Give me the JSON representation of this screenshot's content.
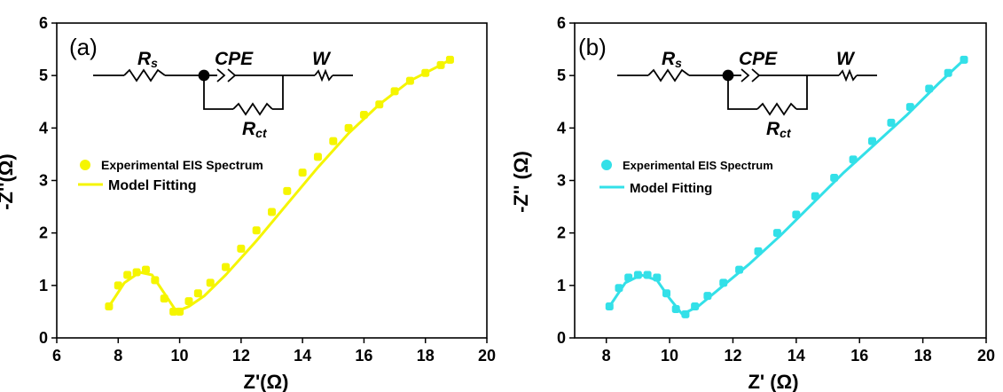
{
  "colors": {
    "panel_a_series": "#f5f500",
    "panel_b_series": "#33e0e8"
  },
  "chart_data": [
    {
      "type": "scatter",
      "panel_label": "(a)",
      "xlabel": "Z'(Ω)",
      "ylabel": "-Z''(Ω)",
      "xlim": [
        6,
        20
      ],
      "ylim": [
        0,
        6
      ],
      "x_ticks": [
        "6",
        "8",
        "10",
        "12",
        "14",
        "16",
        "18",
        "20"
      ],
      "y_ticks": [
        "0",
        "1",
        "2",
        "3",
        "4",
        "5",
        "6"
      ],
      "circuit": {
        "rs": "R",
        "rs_sub": "s",
        "cpe": "CPE",
        "w": "W",
        "rct": "R",
        "rct_sub": "ct"
      },
      "legend": [
        "Experimental EIS Spectrum",
        "Model Fitting"
      ],
      "series": [
        {
          "name": "Experimental EIS Spectrum",
          "x": [
            7.7,
            8.0,
            8.3,
            8.6,
            8.9,
            9.2,
            9.5,
            9.8,
            10.0,
            10.3,
            10.6,
            11.0,
            11.5,
            12.0,
            12.5,
            13.0,
            13.5,
            14.0,
            14.5,
            15.0,
            15.5,
            16.0,
            16.5,
            17.0,
            17.5,
            18.0,
            18.5,
            18.8
          ],
          "y": [
            0.6,
            1.0,
            1.2,
            1.25,
            1.3,
            1.1,
            0.75,
            0.5,
            0.5,
            0.7,
            0.85,
            1.05,
            1.35,
            1.7,
            2.05,
            2.4,
            2.8,
            3.15,
            3.45,
            3.75,
            4.0,
            4.25,
            4.45,
            4.7,
            4.9,
            5.05,
            5.2,
            5.3
          ]
        },
        {
          "name": "Model Fitting",
          "x": [
            7.7,
            8.2,
            8.7,
            9.1,
            9.5,
            9.9,
            10.3,
            10.8,
            11.5,
            12.5,
            13.5,
            14.5,
            15.5,
            16.5,
            17.5,
            18.5,
            18.8
          ],
          "y": [
            0.6,
            1.05,
            1.25,
            1.2,
            0.85,
            0.5,
            0.6,
            0.8,
            1.2,
            1.85,
            2.55,
            3.25,
            3.9,
            4.45,
            4.9,
            5.2,
            5.3
          ]
        }
      ]
    },
    {
      "type": "scatter",
      "panel_label": "(b)",
      "xlabel": "Z' (Ω)",
      "ylabel": "-Z'' (Ω)",
      "xlim": [
        7,
        20
      ],
      "ylim": [
        0,
        6
      ],
      "x_ticks": [
        "8",
        "10",
        "12",
        "14",
        "16",
        "18",
        "20"
      ],
      "y_ticks": [
        "0",
        "1",
        "2",
        "3",
        "4",
        "5",
        "6"
      ],
      "circuit": {
        "rs": "R",
        "rs_sub": "s",
        "cpe": "CPE",
        "w": "W",
        "rct": "R",
        "rct_sub": "ct"
      },
      "legend": [
        "Experimental EIS Spectrum",
        "Model Fitting"
      ],
      "series": [
        {
          "name": "Experimental EIS Spectrum",
          "x": [
            8.1,
            8.4,
            8.7,
            9.0,
            9.3,
            9.6,
            9.9,
            10.2,
            10.5,
            10.8,
            11.2,
            11.7,
            12.2,
            12.8,
            13.4,
            14.0,
            14.6,
            15.2,
            15.8,
            16.4,
            17.0,
            17.6,
            18.2,
            18.8,
            19.3
          ],
          "y": [
            0.6,
            0.95,
            1.15,
            1.2,
            1.2,
            1.15,
            0.85,
            0.55,
            0.45,
            0.6,
            0.8,
            1.05,
            1.3,
            1.65,
            2.0,
            2.35,
            2.7,
            3.05,
            3.4,
            3.75,
            4.1,
            4.4,
            4.75,
            5.05,
            5.3
          ]
        },
        {
          "name": "Model Fitting",
          "x": [
            8.1,
            8.6,
            9.1,
            9.6,
            10.0,
            10.4,
            10.9,
            11.6,
            12.5,
            13.5,
            14.5,
            15.5,
            16.5,
            17.5,
            18.5,
            19.3
          ],
          "y": [
            0.6,
            1.05,
            1.2,
            1.1,
            0.75,
            0.45,
            0.6,
            0.95,
            1.4,
            1.95,
            2.55,
            3.15,
            3.7,
            4.25,
            4.85,
            5.3
          ]
        }
      ]
    }
  ]
}
